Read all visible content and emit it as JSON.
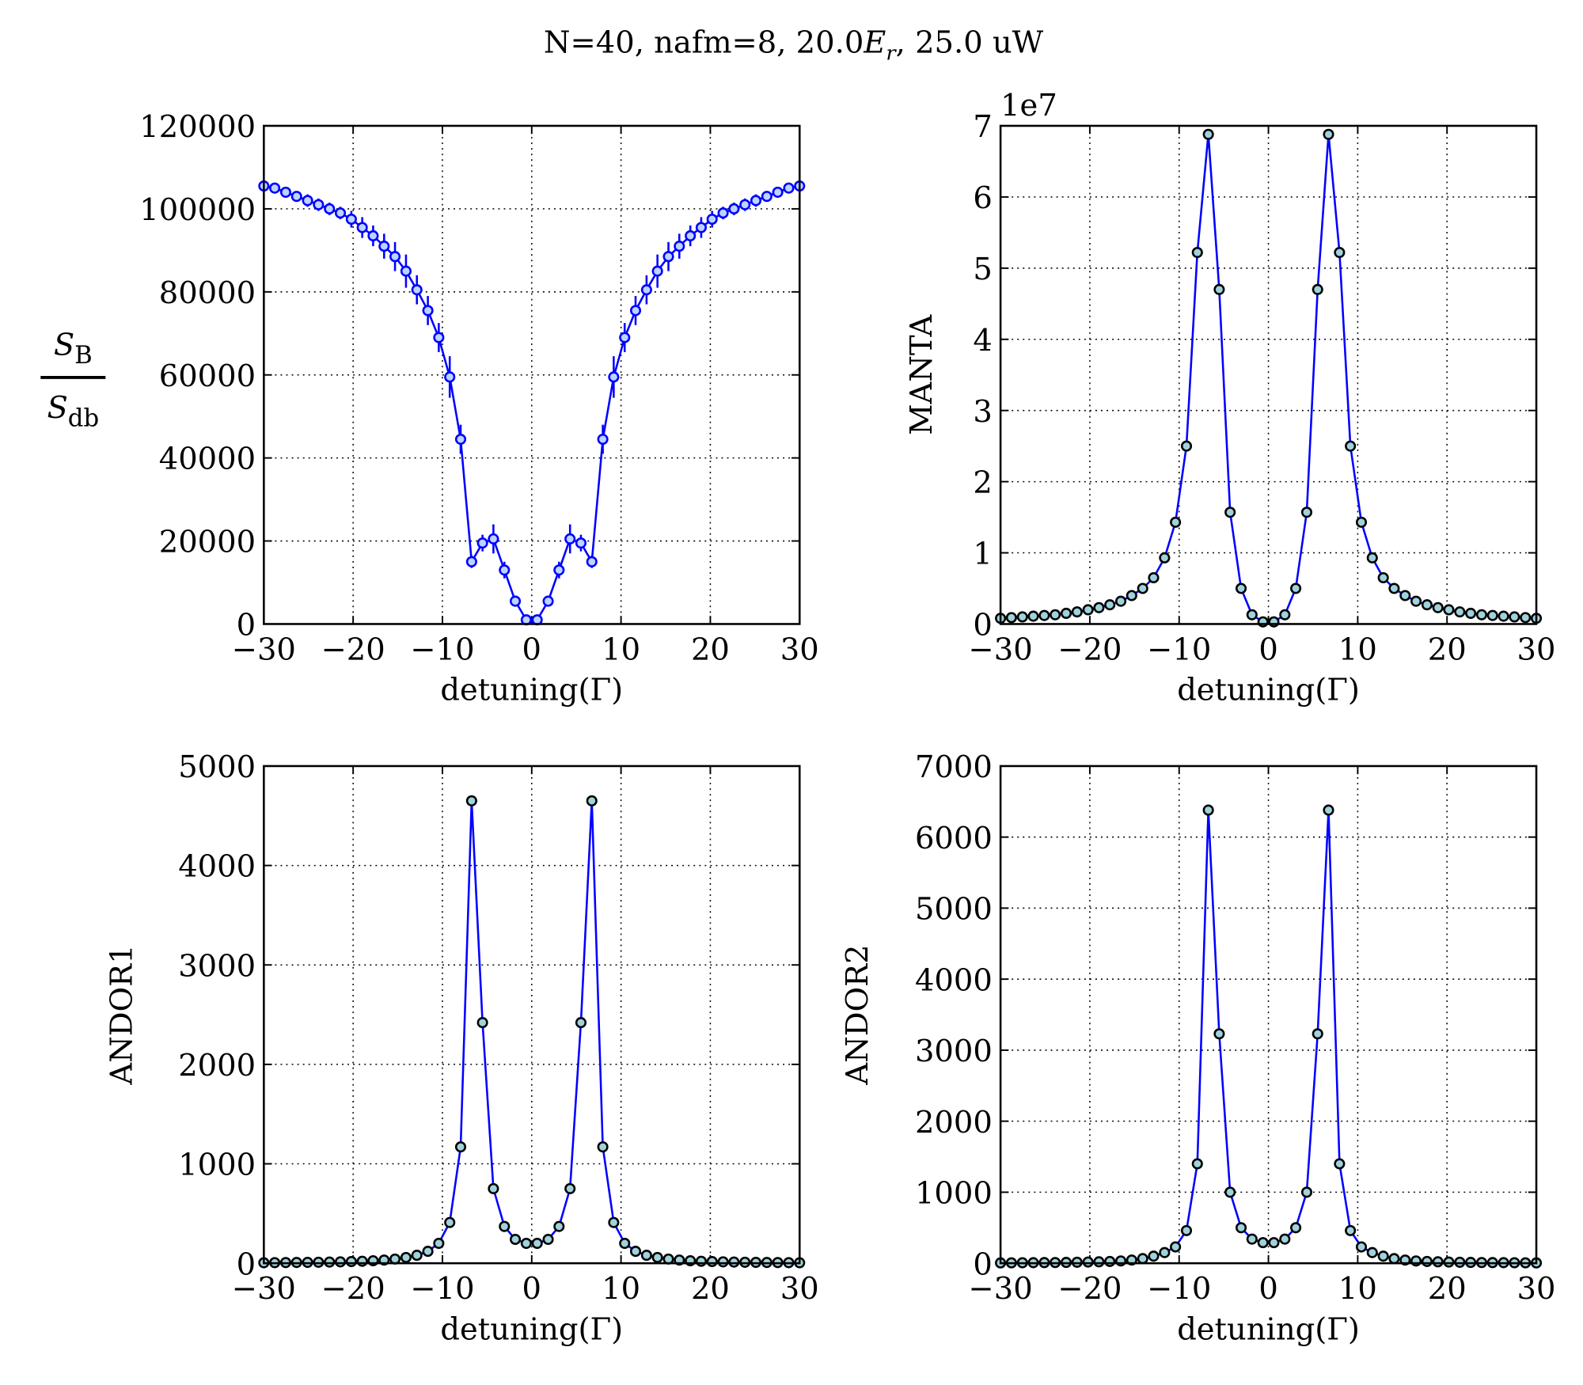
{
  "title": [
    "N=40,  nafm=8,  20.0",
    "E",
    "r",
    ",  25.0 uW"
  ],
  "chart_data": [
    {
      "type": "errorbar",
      "ylabel": {
        "numerator": [
          "S",
          "B"
        ],
        "denominator": [
          "S",
          "db"
        ]
      },
      "xlabel": "detuning(Γ)",
      "xlim": [
        -30,
        30
      ],
      "xticks": [
        {
          "value": -30,
          "label": "−30"
        },
        {
          "value": -20,
          "label": "−20"
        },
        {
          "value": -10,
          "label": "−10"
        },
        0,
        10,
        20,
        30
      ],
      "ylim": [
        0,
        120000
      ],
      "yticks": [
        0,
        20000,
        40000,
        60000,
        80000,
        100000,
        120000
      ],
      "grid": true,
      "x": [
        -30,
        -28.78,
        -27.55,
        -26.33,
        -25.1,
        -23.88,
        -22.65,
        -21.43,
        -20.2,
        -18.98,
        -17.76,
        -16.53,
        -15.31,
        -14.08,
        -12.86,
        -11.63,
        -10.41,
        -9.18,
        -7.96,
        -6.73,
        -5.51,
        -4.29,
        -3.06,
        -1.84,
        -0.61,
        0.61,
        1.84,
        3.06,
        4.29,
        5.51,
        6.73,
        7.96,
        9.18,
        10.41,
        11.63,
        12.86,
        14.08,
        15.31,
        16.53,
        17.76,
        18.98,
        20.2,
        21.43,
        22.65,
        23.88,
        25.1,
        26.33,
        27.55,
        28.78,
        30
      ],
      "series": [
        {
          "color": "#0000ff",
          "marker_face": "#bcd4ff",
          "marker_edge": "#0000ff",
          "values": [
            105500,
            105000,
            104000,
            103000,
            102000,
            101000,
            100000,
            99000,
            97500,
            95500,
            93500,
            91000,
            88500,
            85000,
            80500,
            75500,
            69000,
            59500,
            44500,
            15000,
            19500,
            20500,
            13000,
            5500,
            1000,
            1000,
            5500,
            13000,
            20500,
            19500,
            15000,
            44500,
            59500,
            69000,
            75500,
            80500,
            85000,
            88500,
            91000,
            93500,
            95500,
            97500,
            99000,
            100000,
            101000,
            102000,
            103000,
            104000,
            105000,
            105500
          ],
          "errors": [
            1000,
            1000,
            1000,
            1000,
            1500,
            1500,
            1500,
            1500,
            2000,
            2500,
            2500,
            3000,
            3500,
            4000,
            3500,
            3500,
            3500,
            5000,
            3500,
            1500,
            2000,
            3500,
            2000,
            1000,
            1000,
            1000,
            1000,
            2000,
            3500,
            2000,
            1500,
            3500,
            5000,
            3500,
            3500,
            3500,
            4000,
            3500,
            3000,
            2500,
            2500,
            2000,
            1500,
            1500,
            1500,
            1500,
            1000,
            1000,
            1000,
            1000
          ]
        }
      ]
    },
    {
      "type": "line",
      "ylabel": "MANTA",
      "xlabel": "detuning(Γ)",
      "offset_text": "1e7",
      "xlim": [
        -30,
        30
      ],
      "xticks": [
        {
          "value": -30,
          "label": "−30"
        },
        {
          "value": -20,
          "label": "−20"
        },
        {
          "value": -10,
          "label": "−10"
        },
        0,
        10,
        20,
        30
      ],
      "ylim": [
        0,
        7
      ],
      "yticks": [
        0,
        1,
        2,
        3,
        4,
        5,
        6,
        7
      ],
      "grid": true,
      "x": [
        -30,
        -28.78,
        -27.55,
        -26.33,
        -25.1,
        -23.88,
        -22.65,
        -21.43,
        -20.2,
        -18.98,
        -17.76,
        -16.53,
        -15.31,
        -14.08,
        -12.86,
        -11.63,
        -10.41,
        -9.18,
        -7.96,
        -6.73,
        -5.51,
        -4.29,
        -3.06,
        -1.84,
        -0.61,
        0.61,
        1.84,
        3.06,
        4.29,
        5.51,
        6.73,
        7.96,
        9.18,
        10.41,
        11.63,
        12.86,
        14.08,
        15.31,
        16.53,
        17.76,
        18.98,
        20.2,
        21.43,
        22.65,
        23.88,
        25.1,
        26.33,
        27.55,
        28.78,
        30
      ],
      "series": [
        {
          "color": "#0000ff",
          "marker_face": "#9fd3dc",
          "marker_edge": "#000000",
          "values": [
            0.08,
            0.09,
            0.1,
            0.11,
            0.12,
            0.13,
            0.15,
            0.17,
            0.2,
            0.23,
            0.27,
            0.32,
            0.4,
            0.5,
            0.65,
            0.93,
            1.43,
            2.5,
            5.22,
            6.88,
            4.7,
            1.57,
            0.5,
            0.13,
            0.03,
            0.03,
            0.13,
            0.5,
            1.57,
            4.7,
            6.88,
            5.22,
            2.5,
            1.43,
            0.93,
            0.65,
            0.5,
            0.4,
            0.32,
            0.27,
            0.23,
            0.2,
            0.17,
            0.15,
            0.13,
            0.12,
            0.11,
            0.1,
            0.09,
            0.08
          ]
        }
      ]
    },
    {
      "type": "line",
      "ylabel": "ANDOR1",
      "xlabel": "detuning(Γ)",
      "xlim": [
        -30,
        30
      ],
      "xticks": [
        {
          "value": -30,
          "label": "−30"
        },
        {
          "value": -20,
          "label": "−20"
        },
        {
          "value": -10,
          "label": "−10"
        },
        0,
        10,
        20,
        30
      ],
      "ylim": [
        0,
        5000
      ],
      "yticks": [
        0,
        1000,
        2000,
        3000,
        4000,
        5000
      ],
      "grid": true,
      "x": [
        -30,
        -28.78,
        -27.55,
        -26.33,
        -25.1,
        -23.88,
        -22.65,
        -21.43,
        -20.2,
        -18.98,
        -17.76,
        -16.53,
        -15.31,
        -14.08,
        -12.86,
        -11.63,
        -10.41,
        -9.18,
        -7.96,
        -6.73,
        -5.51,
        -4.29,
        -3.06,
        -1.84,
        -0.61,
        0.61,
        1.84,
        3.06,
        4.29,
        5.51,
        6.73,
        7.96,
        9.18,
        10.41,
        11.63,
        12.86,
        14.08,
        15.31,
        16.53,
        17.76,
        18.98,
        20.2,
        21.43,
        22.65,
        23.88,
        25.1,
        26.33,
        27.55,
        28.78,
        30
      ],
      "series": [
        {
          "color": "#0000ff",
          "marker_face": "#9fd3dc",
          "marker_edge": "#000000",
          "values": [
            5,
            6,
            7,
            8,
            9,
            10,
            12,
            14,
            17,
            20,
            25,
            32,
            42,
            58,
            80,
            120,
            200,
            410,
            1170,
            4650,
            2420,
            750,
            370,
            240,
            200,
            200,
            240,
            370,
            750,
            2420,
            4650,
            1170,
            410,
            200,
            120,
            80,
            58,
            42,
            32,
            25,
            20,
            17,
            14,
            12,
            10,
            9,
            8,
            7,
            6,
            5
          ]
        }
      ]
    },
    {
      "type": "line",
      "ylabel": "ANDOR2",
      "xlabel": "detuning(Γ)",
      "xlim": [
        -30,
        30
      ],
      "xticks": [
        {
          "value": -30,
          "label": "−30"
        },
        {
          "value": -20,
          "label": "−20"
        },
        {
          "value": -10,
          "label": "−10"
        },
        0,
        10,
        20,
        30
      ],
      "ylim": [
        0,
        7000
      ],
      "yticks": [
        0,
        1000,
        2000,
        3000,
        4000,
        5000,
        6000,
        7000
      ],
      "grid": true,
      "x": [
        -30,
        -28.78,
        -27.55,
        -26.33,
        -25.1,
        -23.88,
        -22.65,
        -21.43,
        -20.2,
        -18.98,
        -17.76,
        -16.53,
        -15.31,
        -14.08,
        -12.86,
        -11.63,
        -10.41,
        -9.18,
        -7.96,
        -6.73,
        -5.51,
        -4.29,
        -3.06,
        -1.84,
        -0.61,
        0.61,
        1.84,
        3.06,
        4.29,
        5.51,
        6.73,
        7.96,
        9.18,
        10.41,
        11.63,
        12.86,
        14.08,
        15.31,
        16.53,
        17.76,
        18.98,
        20.2,
        21.43,
        22.65,
        23.88,
        25.1,
        26.33,
        27.55,
        28.78,
        30
      ],
      "series": [
        {
          "color": "#0000ff",
          "marker_face": "#9fd3dc",
          "marker_edge": "#000000",
          "values": [
            5,
            6,
            7,
            8,
            9,
            10,
            12,
            14,
            17,
            20,
            25,
            32,
            45,
            65,
            100,
            150,
            230,
            460,
            1400,
            6380,
            3230,
            1000,
            500,
            340,
            290,
            290,
            340,
            500,
            1000,
            3230,
            6380,
            1400,
            460,
            230,
            150,
            100,
            65,
            45,
            32,
            25,
            20,
            17,
            14,
            12,
            10,
            9,
            8,
            7,
            6,
            5
          ]
        }
      ]
    }
  ]
}
